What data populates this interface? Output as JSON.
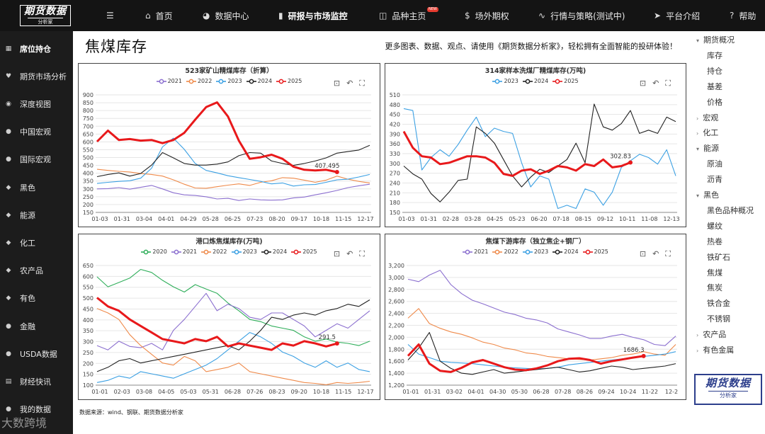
{
  "brand": {
    "logo_main": "期货数据",
    "logo_sub": "分析家"
  },
  "topnav": [
    {
      "icon": "☰",
      "label": ""
    },
    {
      "icon": "⌂",
      "label": "首页"
    },
    {
      "icon": "◕",
      "label": "数据中心"
    },
    {
      "icon": "▮",
      "label": "研报与市场监控"
    },
    {
      "icon": "◫",
      "label": "品种主页"
    },
    {
      "icon": "$",
      "label": "场外期权"
    },
    {
      "icon": "∿",
      "label": "行情与策略(测试中)"
    },
    {
      "icon": "➤",
      "label": "平台介绍"
    },
    {
      "icon": "?",
      "label": "帮助"
    }
  ],
  "new_badge": "NEW",
  "sidebar": [
    {
      "icon": "▦",
      "label": "席位持仓"
    },
    {
      "icon": "♥",
      "label": "期货市场分析"
    },
    {
      "icon": "◉",
      "label": "深度视图"
    },
    {
      "icon": "●",
      "label": "中国宏观"
    },
    {
      "icon": "●",
      "label": "国际宏观"
    },
    {
      "icon": "◆",
      "label": "黑色"
    },
    {
      "icon": "◆",
      "label": "能源"
    },
    {
      "icon": "◆",
      "label": "化工"
    },
    {
      "icon": "◆",
      "label": "农产品"
    },
    {
      "icon": "◆",
      "label": "有色"
    },
    {
      "icon": "●",
      "label": "金融"
    },
    {
      "icon": "●",
      "label": "USDA数据"
    },
    {
      "icon": "▤",
      "label": "财经快讯"
    },
    {
      "icon": "●",
      "label": "我的数据"
    }
  ],
  "page_title": "焦煤库存",
  "promo": "更多图表、数据、观点、请使用《期货数据分析家》，轻松拥有全面智能的投研体验！",
  "source": "数据来源：wind、钢联、期货数据分析家",
  "rightnav": [
    {
      "caret": "▾",
      "label": "期货概况",
      "level": 0
    },
    {
      "caret": "",
      "label": "库存",
      "level": 1
    },
    {
      "caret": "",
      "label": "持仓",
      "level": 1
    },
    {
      "caret": "",
      "label": "基差",
      "level": 1
    },
    {
      "caret": "",
      "label": "价格",
      "level": 1
    },
    {
      "caret": "›",
      "label": "宏观",
      "level": 0
    },
    {
      "caret": "›",
      "label": "化工",
      "level": 0
    },
    {
      "caret": "▾",
      "label": "能源",
      "level": 0
    },
    {
      "caret": "",
      "label": "原油",
      "level": 1
    },
    {
      "caret": "",
      "label": "沥青",
      "level": 1
    },
    {
      "caret": "▾",
      "label": "黑色",
      "level": 0
    },
    {
      "caret": "",
      "label": "黑色品种概况",
      "level": 1
    },
    {
      "caret": "",
      "label": "螺纹",
      "level": 1
    },
    {
      "caret": "",
      "label": "热卷",
      "level": 1
    },
    {
      "caret": "",
      "label": "铁矿石",
      "level": 1
    },
    {
      "caret": "",
      "label": "焦煤",
      "level": 1
    },
    {
      "caret": "",
      "label": "焦炭",
      "level": 1
    },
    {
      "caret": "",
      "label": "铁合金",
      "level": 1
    },
    {
      "caret": "",
      "label": "不锈钢",
      "level": 1
    },
    {
      "caret": "›",
      "label": "农产品",
      "level": 0
    },
    {
      "caret": "›",
      "label": "有色金属",
      "level": 0
    }
  ],
  "brand_box": {
    "main": "期货数据",
    "sub": "分析家"
  },
  "watermark": "大数跨境",
  "tool_icons": [
    "zoom-icon",
    "undo-icon",
    "fullscreen-icon"
  ],
  "chart_data": [
    {
      "type": "line",
      "title": "523家矿山精煤库存（折算）",
      "yticks": [
        150,
        200,
        250,
        300,
        350,
        400,
        450,
        500,
        550,
        600,
        650,
        700,
        750,
        800,
        850,
        900
      ],
      "ylim": [
        150,
        900
      ],
      "xticks": [
        "01-03",
        "01-31",
        "03-04",
        "04-01",
        "04-29",
        "05-28",
        "06-25",
        "07-23",
        "08-20",
        "09-17",
        "10-18",
        "11-15",
        "12-17"
      ],
      "series": [
        {
          "name": "2021",
          "color": "#8b6fcf",
          "values": [
            300,
            302,
            308,
            298,
            310,
            322,
            300,
            275,
            262,
            258,
            250,
            236,
            240,
            226,
            236,
            230,
            228,
            230,
            242,
            248,
            262,
            275,
            290,
            308,
            320,
            330
          ]
        },
        {
          "name": "2022",
          "color": "#ef8a4a",
          "values": [
            425,
            418,
            412,
            408,
            398,
            392,
            382,
            358,
            330,
            306,
            304,
            314,
            324,
            332,
            322,
            342,
            352,
            372,
            368,
            356,
            342,
            356,
            382,
            362,
            348,
            338
          ]
        },
        {
          "name": "2023",
          "color": "#3ba0e3",
          "values": [
            335,
            342,
            348,
            352,
            368,
            432,
            568,
            624,
            552,
            462,
            418,
            402,
            384,
            372,
            360,
            348,
            332,
            338,
            318,
            326,
            328,
            342,
            358,
            362,
            376,
            392
          ]
        },
        {
          "name": "2024",
          "color": "#222222",
          "values": [
            378,
            392,
            402,
            382,
            398,
            452,
            532,
            498,
            462,
            452,
            452,
            458,
            472,
            512,
            532,
            528,
            478,
            462,
            450,
            462,
            478,
            498,
            528,
            538,
            548,
            578
          ]
        },
        {
          "name": "2025",
          "color": "#e8191b",
          "values": [
            602,
            672,
            612,
            618,
            608,
            612,
            592,
            612,
            658,
            742,
            822,
            852,
            762,
            608,
            492,
            502,
            518,
            492,
            442,
            422,
            418,
            422,
            407.495
          ]
        }
      ],
      "end_label": "407.495"
    },
    {
      "type": "line",
      "title": "314家样本洗煤厂精煤库存(万吨)",
      "yticks": [
        150,
        180,
        210,
        240,
        270,
        300,
        330,
        360,
        390,
        420,
        450,
        480,
        510
      ],
      "ylim": [
        150,
        510
      ],
      "xticks": [
        "01-03",
        "01-31",
        "02-28",
        "03-28",
        "04-25",
        "05-23",
        "06-20",
        "07-18",
        "08-15",
        "09-12",
        "10-11",
        "11-08",
        "12-13"
      ],
      "series": [
        {
          "name": "2023",
          "color": "#3ba0e3",
          "values": [
            468,
            462,
            280,
            318,
            342,
            322,
            358,
            402,
            442,
            382,
            408,
            398,
            392,
            302,
            228,
            262,
            252,
            162,
            172,
            162,
            222,
            212,
            172,
            212,
            288,
            308,
            328,
            318,
            298,
            342,
            262
          ]
        },
        {
          "name": "2024",
          "color": "#222222",
          "values": [
            292,
            268,
            252,
            208,
            182,
            212,
            248,
            252,
            412,
            392,
            362,
            312,
            262,
            228,
            258,
            282,
            272,
            292,
            312,
            362,
            302,
            482,
            412,
            402,
            422,
            462,
            392,
            402,
            392,
            442,
            428
          ]
        },
        {
          "name": "2025",
          "color": "#e8191b",
          "values": [
            398,
            348,
            322,
            318,
            298,
            302,
            312,
            322,
            322,
            318,
            302,
            268,
            262,
            278,
            282,
            268,
            278,
            292,
            288,
            278,
            298,
            292,
            312,
            288,
            292,
            302.83
          ]
        }
      ],
      "end_label": "302.83"
    },
    {
      "type": "line",
      "title": "港口炼焦煤库存(万吨)",
      "yticks": [
        100,
        150,
        200,
        250,
        300,
        350,
        400,
        450,
        500,
        550,
        600,
        650
      ],
      "ylim": [
        100,
        650
      ],
      "xticks": [
        "01-01",
        "02-03",
        "03-08",
        "04-05",
        "05-03",
        "05-31",
        "06-28",
        "07-26",
        "08-23",
        "09-20",
        "10-18",
        "11-15",
        "12-17"
      ],
      "series": [
        {
          "name": "2020",
          "color": "#2fae5a",
          "values": [
            598,
            552,
            572,
            592,
            632,
            618,
            582,
            552,
            528,
            562,
            542,
            522,
            478,
            442,
            402,
            392,
            372,
            362,
            352,
            322,
            302,
            312,
            298,
            292,
            282,
            302
          ]
        },
        {
          "name": "2021",
          "color": "#8b6fcf",
          "values": [
            282,
            262,
            302,
            278,
            272,
            292,
            262,
            352,
            402,
            462,
            522,
            442,
            472,
            452,
            412,
            402,
            432,
            432,
            402,
            372,
            322,
            352,
            382,
            362,
            402,
            442
          ]
        },
        {
          "name": "2022",
          "color": "#ef8a4a",
          "values": [
            452,
            432,
            402,
            332,
            282,
            242,
            202,
            192,
            232,
            212,
            162,
            172,
            182,
            202,
            162,
            152,
            142,
            132,
            122,
            112,
            108,
            102,
            112,
            108,
            112,
            118
          ]
        },
        {
          "name": "2023",
          "color": "#3ba0e3",
          "values": [
            112,
            122,
            142,
            132,
            162,
            152,
            142,
            132,
            152,
            172,
            192,
            222,
            262,
            302,
            342,
            322,
            292,
            252,
            232,
            202,
            182,
            212,
            182,
            202,
            172,
            162
          ]
        },
        {
          "name": "2024",
          "color": "#222222",
          "values": [
            162,
            182,
            212,
            222,
            202,
            212,
            222,
            232,
            242,
            252,
            262,
            272,
            282,
            262,
            302,
            352,
            412,
            402,
            422,
            432,
            422,
            442,
            452,
            472,
            462,
            492
          ]
        },
        {
          "name": "2025",
          "color": "#e8191b",
          "values": [
            502,
            462,
            442,
            402,
            372,
            342,
            312,
            302,
            292,
            312,
            302,
            322,
            278,
            292,
            282,
            272,
            262,
            292,
            282,
            302,
            292,
            278,
            291.5
          ]
        }
      ],
      "end_label": "291.5"
    },
    {
      "type": "line",
      "title": "焦煤下游库存（独立焦企+钢厂）",
      "yticks": [
        1200,
        1400,
        1600,
        1800,
        2000,
        2200,
        2400,
        2600,
        2800,
        3000,
        3200
      ],
      "ylim": [
        1200,
        3200
      ],
      "xticks": [
        "01-01",
        "01-31",
        "03-02",
        "04-01",
        "04-30",
        "05-30",
        "06-28",
        "07-28",
        "08-26",
        "09-24",
        "10-24",
        "11-22",
        "12-2"
      ],
      "series": [
        {
          "name": "2021",
          "color": "#8b6fcf",
          "values": [
            2970,
            2930,
            3040,
            3120,
            2880,
            2730,
            2620,
            2560,
            2490,
            2420,
            2380,
            2320,
            2290,
            2240,
            2140,
            2090,
            2040,
            1980,
            1980,
            2020,
            2050,
            2000,
            1960,
            1880,
            1860,
            2020
          ]
        },
        {
          "name": "2022",
          "color": "#ef8a4a",
          "values": [
            2320,
            2480,
            2230,
            2150,
            2090,
            2050,
            1990,
            1920,
            1880,
            1820,
            1790,
            1740,
            1720,
            1680,
            1660,
            1640,
            1630,
            1620,
            1640,
            1660,
            1700,
            1720,
            1760,
            1720,
            1700,
            1880
          ]
        },
        {
          "name": "2023",
          "color": "#3ba0e3",
          "values": [
            1880,
            1720,
            1660,
            1600,
            1580,
            1570,
            1560,
            1540,
            1520,
            1500,
            1490,
            1480,
            1470,
            1480,
            1500,
            1540,
            1560,
            1580,
            1600,
            1620,
            1640,
            1660,
            1680,
            1700,
            1720,
            1760
          ]
        },
        {
          "name": "2024",
          "color": "#222222",
          "values": [
            1620,
            1820,
            2080,
            1600,
            1480,
            1400,
            1380,
            1420,
            1460,
            1400,
            1420,
            1440,
            1460,
            1480,
            1500,
            1460,
            1420,
            1440,
            1480,
            1520,
            1500,
            1460,
            1480,
            1500,
            1520,
            1560
          ]
        },
        {
          "name": "2025",
          "color": "#e8191b",
          "values": [
            1690,
            1880,
            1560,
            1440,
            1420,
            1490,
            1580,
            1620,
            1560,
            1500,
            1460,
            1450,
            1480,
            1530,
            1600,
            1640,
            1650,
            1620,
            1560,
            1600,
            1630,
            1660,
            1686.3
          ]
        }
      ],
      "end_label": "1686.3"
    }
  ]
}
